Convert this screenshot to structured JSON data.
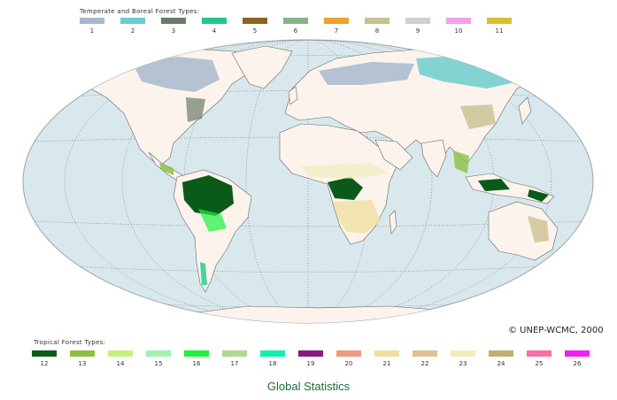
{
  "legend_top": {
    "title": "Temperate and Boreal Forest Types:",
    "items": [
      {
        "num": "1",
        "color": "#a8b8cc"
      },
      {
        "num": "2",
        "color": "#6ccccc"
      },
      {
        "num": "3",
        "color": "#6b7b6a"
      },
      {
        "num": "4",
        "color": "#22c88a"
      },
      {
        "num": "5",
        "color": "#8b6420"
      },
      {
        "num": "6",
        "color": "#86b48a"
      },
      {
        "num": "7",
        "color": "#f0a030"
      },
      {
        "num": "8",
        "color": "#c8c090"
      },
      {
        "num": "9",
        "color": "#d0d0d0"
      },
      {
        "num": "10",
        "color": "#f4a0e8"
      },
      {
        "num": "11",
        "color": "#d8c030"
      }
    ]
  },
  "legend_bottom": {
    "title": "Tropical Forest Types:",
    "items": [
      {
        "num": "12",
        "color": "#0a5a1a"
      },
      {
        "num": "13",
        "color": "#8cc040"
      },
      {
        "num": "14",
        "color": "#c8f080"
      },
      {
        "num": "15",
        "color": "#a0f0b0"
      },
      {
        "num": "16",
        "color": "#20f040"
      },
      {
        "num": "17",
        "color": "#b0d890"
      },
      {
        "num": "18",
        "color": "#10f0b0"
      },
      {
        "num": "19",
        "color": "#8a1880"
      },
      {
        "num": "20",
        "color": "#f09880"
      },
      {
        "num": "21",
        "color": "#f0e0a0"
      },
      {
        "num": "22",
        "color": "#e0c090"
      },
      {
        "num": "23",
        "color": "#f0ecc0"
      },
      {
        "num": "24",
        "color": "#c0b070"
      },
      {
        "num": "25",
        "color": "#f870a8"
      },
      {
        "num": "26",
        "color": "#f020f0"
      }
    ]
  },
  "map": {
    "ocean_color": "#d8e8ec",
    "land_color": "#fbf3ec"
  },
  "copyright": "© UNEP-WCMC, 2000",
  "footer_title": "Global Statistics"
}
